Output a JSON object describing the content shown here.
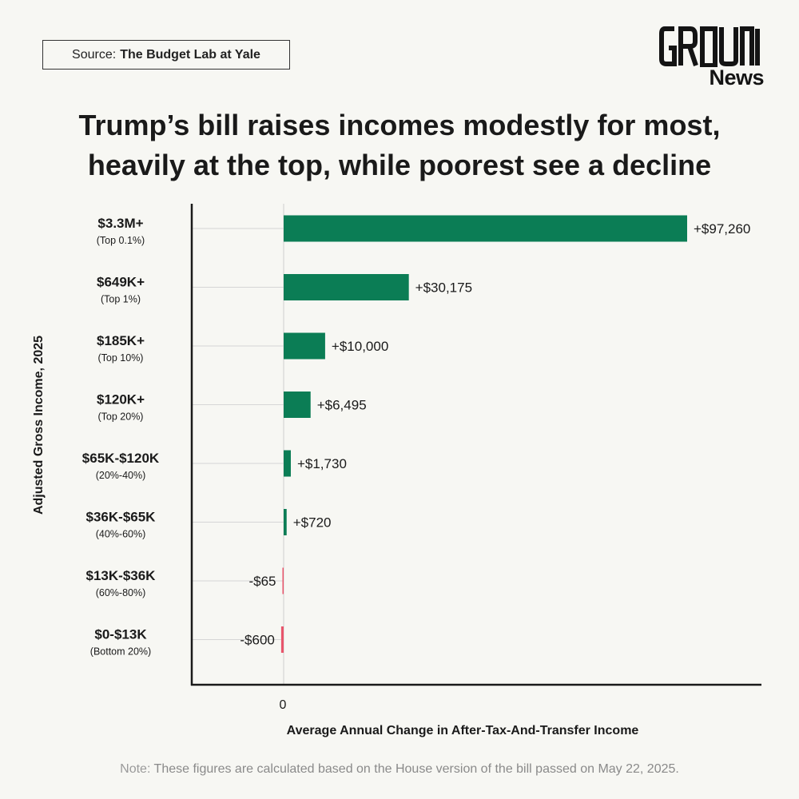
{
  "source": {
    "prefix": "Source:",
    "name": "The Budget Lab at Yale"
  },
  "logo": {
    "top_text": "GROUND",
    "bottom_text": "News"
  },
  "title_line1": "Trump’s bill raises incomes modestly for most,",
  "title_line2": "heavily at the top, while poorest see a decline",
  "note": {
    "prefix": "Note:",
    "text": "These figures are calculated based on the House version of the bill passed on May 22, 2025."
  },
  "colors": {
    "positive": "#0b7d55",
    "negative": "#e8556b",
    "background": "#f7f7f3"
  },
  "chart_data": {
    "type": "bar",
    "orientation": "horizontal",
    "ylabel": "Adjusted Gross Income, 2025",
    "xlabel": "Average Annual Change in After-Tax-And-Transfer Income",
    "x_tick_labels": [
      "0"
    ],
    "categories": [
      {
        "label": "$3.3M+",
        "sub": "(Top 0.1%)"
      },
      {
        "label": "$649K+",
        "sub": "(Top 1%)"
      },
      {
        "label": "$185K+",
        "sub": "(Top 10%)"
      },
      {
        "label": "$120K+",
        "sub": "(Top 20%)"
      },
      {
        "label": "$65K-$120K",
        "sub": "(20%-40%)"
      },
      {
        "label": "$36K-$65K",
        "sub": "(40%-60%)"
      },
      {
        "label": "$13K-$36K",
        "sub": "(60%-80%)"
      },
      {
        "label": "$0-$13K",
        "sub": "(Bottom 20%)"
      }
    ],
    "values": [
      97260,
      30175,
      10000,
      6495,
      1730,
      720,
      -65,
      -600
    ],
    "value_labels": [
      "+$97,260",
      "+$30,175",
      "+$10,000",
      "+$6,495",
      "+$1,730",
      "+$720",
      "-$65",
      "-$600"
    ],
    "grid": false,
    "legend": "none"
  }
}
